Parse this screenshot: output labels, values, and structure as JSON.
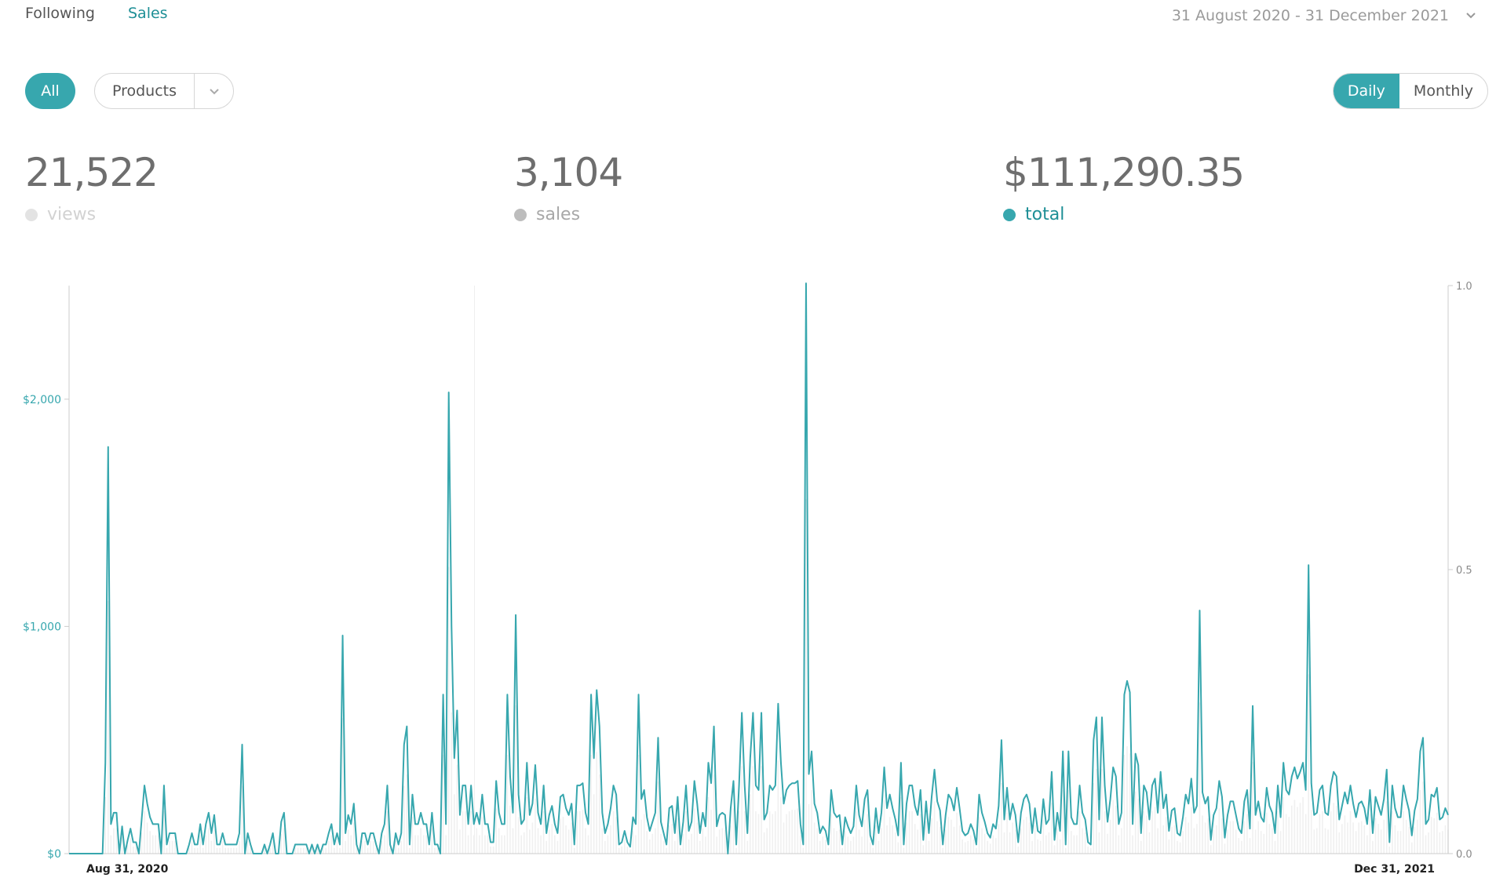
{
  "nav": {
    "tabs": [
      {
        "label": "Following",
        "active": false
      },
      {
        "label": "Sales",
        "active": true
      }
    ]
  },
  "date_range": "31 August 2020 - 31 December 2021",
  "filters": {
    "all_label": "All",
    "products_label": "Products",
    "granularity": [
      {
        "label": "Daily",
        "active": true
      },
      {
        "label": "Monthly",
        "active": false
      }
    ]
  },
  "stats": {
    "views": {
      "value": "21,522",
      "label": "views",
      "color": "#e3e3e3"
    },
    "sales": {
      "value": "3,104",
      "label": "sales",
      "color": "#bdbdbd"
    },
    "total": {
      "value": "$111,290.35",
      "label": "total",
      "color": "#37a7ae"
    }
  },
  "colors": {
    "accent": "#37a7ae",
    "views_series": "#f0f0f0",
    "axis": "#cccccc"
  },
  "chart_data": {
    "type": "line",
    "x_start": "Aug 31, 2020",
    "x_end": "Dec 31, 2021",
    "left_axis": {
      "ticks": [
        "$0",
        "$1,000",
        "$2,000"
      ],
      "values": [
        0,
        1000,
        2000
      ],
      "range": [
        0,
        2500
      ]
    },
    "right_axis": {
      "ticks": [
        "0.0",
        "0.5",
        "1.0"
      ],
      "values": [
        0,
        0.5,
        1.0
      ],
      "range": [
        0,
        1.0
      ]
    },
    "x_tick_labels": [
      "Aug 31, 2020",
      "Dec 31, 2021"
    ],
    "series": [
      {
        "name": "total",
        "values": [
          0,
          0,
          0,
          0,
          0,
          0,
          0,
          0,
          0,
          0,
          0,
          0,
          0,
          400,
          1790,
          130,
          180,
          180,
          0,
          120,
          0,
          60,
          110,
          50,
          50,
          0,
          150,
          300,
          220,
          160,
          130,
          130,
          130,
          0,
          300,
          40,
          90,
          90,
          90,
          0,
          0,
          0,
          0,
          40,
          90,
          40,
          40,
          130,
          40,
          130,
          180,
          90,
          170,
          40,
          40,
          90,
          40,
          40,
          40,
          40,
          40,
          90,
          480,
          0,
          90,
          40,
          0,
          0,
          0,
          0,
          40,
          0,
          40,
          90,
          0,
          0,
          140,
          180,
          0,
          0,
          0,
          40,
          40,
          40,
          40,
          40,
          0,
          40,
          0,
          40,
          0,
          40,
          40,
          90,
          130,
          40,
          90,
          40,
          960,
          90,
          170,
          130,
          220,
          40,
          0,
          90,
          90,
          40,
          90,
          90,
          40,
          0,
          90,
          130,
          300,
          40,
          0,
          90,
          40,
          90,
          480,
          560,
          40,
          260,
          130,
          130,
          180,
          130,
          130,
          40,
          180,
          40,
          40,
          0,
          700,
          130,
          2030,
          1000,
          420,
          630,
          170,
          300,
          300,
          130,
          300,
          130,
          180,
          130,
          260,
          130,
          130,
          50,
          50,
          320,
          180,
          130,
          130,
          700,
          340,
          180,
          1050,
          260,
          130,
          150,
          400,
          170,
          220,
          390,
          180,
          130,
          300,
          90,
          170,
          210,
          130,
          90,
          250,
          260,
          200,
          170,
          220,
          40,
          300,
          300,
          310,
          180,
          130,
          700,
          420,
          720,
          560,
          180,
          90,
          130,
          200,
          300,
          260,
          40,
          50,
          100,
          50,
          30,
          160,
          130,
          700,
          240,
          280,
          160,
          100,
          140,
          180,
          510,
          140,
          90,
          40,
          200,
          210,
          90,
          250,
          40,
          140,
          300,
          100,
          140,
          320,
          220,
          90,
          180,
          120,
          400,
          310,
          560,
          120,
          170,
          180,
          170,
          0,
          200,
          320,
          40,
          300,
          620,
          300,
          90,
          420,
          620,
          300,
          280,
          620,
          150,
          180,
          300,
          280,
          300,
          660,
          400,
          220,
          280,
          300,
          310,
          310,
          320,
          130,
          40,
          2510,
          350,
          450,
          220,
          180,
          90,
          120,
          100,
          40,
          280,
          180,
          160,
          170,
          40,
          160,
          120,
          90,
          120,
          300,
          170,
          120,
          240,
          280,
          80,
          40,
          200,
          90,
          180,
          380,
          200,
          260,
          200,
          150,
          80,
          400,
          40,
          220,
          300,
          300,
          210,
          170,
          280,
          60,
          230,
          90,
          250,
          370,
          230,
          190,
          40,
          170,
          260,
          240,
          190,
          290,
          200,
          100,
          80,
          90,
          130,
          100,
          40,
          260,
          180,
          140,
          90,
          70,
          130,
          110,
          210,
          500,
          150,
          290,
          150,
          220,
          170,
          50,
          180,
          240,
          260,
          220,
          90,
          200,
          100,
          90,
          240,
          130,
          150,
          360,
          60,
          180,
          100,
          450,
          40,
          450,
          160,
          130,
          130,
          300,
          180,
          150,
          50,
          40,
          500,
          600,
          150,
          600,
          300,
          140,
          240,
          380,
          340,
          130,
          180,
          700,
          760,
          710,
          130,
          440,
          390,
          90,
          300,
          270,
          150,
          300,
          330,
          180,
          360,
          200,
          260,
          100,
          190,
          200,
          90,
          80,
          160,
          260,
          220,
          330,
          180,
          210,
          1070,
          270,
          220,
          250,
          60,
          170,
          200,
          320,
          250,
          70,
          170,
          230,
          230,
          170,
          110,
          90,
          230,
          280,
          110,
          650,
          170,
          230,
          160,
          140,
          290,
          210,
          180,
          90,
          300,
          160,
          400,
          280,
          260,
          340,
          380,
          330,
          360,
          400,
          280,
          1270,
          310,
          170,
          180,
          280,
          300,
          180,
          170,
          300,
          360,
          340,
          150,
          210,
          270,
          220,
          300,
          220,
          160,
          220,
          230,
          200,
          130,
          280,
          90,
          250,
          210,
          170,
          240,
          370,
          50,
          300,
          200,
          160,
          160,
          300,
          240,
          190,
          80,
          190,
          240,
          450,
          510,
          130,
          150,
          260,
          250,
          290,
          150,
          160,
          200,
          170
        ]
      }
    ]
  }
}
